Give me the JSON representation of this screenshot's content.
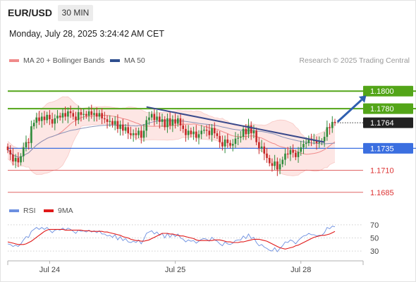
{
  "header": {
    "pair": "EUR/USD",
    "timeframe": "30 MIN",
    "datetime": "Monday, July 28, 2025 3:24:42 AM CET"
  },
  "legend": {
    "main": [
      {
        "label": "MA 20 + Bollinger Bands",
        "color": "#f08a8a"
      },
      {
        "label": "MA 50",
        "color": "#2f4f8f"
      }
    ],
    "rsi": [
      {
        "label": "RSI",
        "color": "#6c8fe0"
      },
      {
        "label": "9MA",
        "color": "#e01919"
      }
    ]
  },
  "credit": "Research © 2025 Trading Central",
  "colors": {
    "up": "#2e8b3a",
    "down": "#c62828",
    "resistance": "#53a518",
    "support": "#3b6fe0",
    "target_red": "#e06666",
    "trendline": "#3a4a8c",
    "arrow": "#2f5fb0"
  },
  "chart_data": {
    "type": "candlestick",
    "symbol": "EUR/USD",
    "timeframe": "30 MIN",
    "ylim": [
      1.1676,
      1.1829
    ],
    "x_ticks": [
      {
        "label": "Jul 24",
        "index": 16
      },
      {
        "label": "Jul 25",
        "index": 64
      },
      {
        "label": "Jul 28",
        "index": 112
      }
    ],
    "levels": [
      {
        "value": 1.18,
        "label": "1.1800",
        "kind": "resistance"
      },
      {
        "value": 1.178,
        "label": "1.1780",
        "kind": "resistance"
      },
      {
        "value": 1.1764,
        "label": "1.1764",
        "kind": "last_price"
      },
      {
        "value": 1.1735,
        "label": "1.1735",
        "kind": "pivot"
      },
      {
        "value": 1.171,
        "label": "1.1710",
        "kind": "support"
      },
      {
        "value": 1.1685,
        "label": "1.1685",
        "kind": "support"
      }
    ],
    "trendline": [
      {
        "index": 53,
        "value": 1.1782
      },
      {
        "index": 121,
        "value": 1.1742
      }
    ],
    "target_arrow": [
      {
        "index": 126,
        "value": 1.1765
      },
      {
        "index": 137,
        "value": 1.1795
      }
    ],
    "close": [
      1.1733,
      1.1728,
      1.172,
      1.1724,
      1.1719,
      1.1726,
      1.1736,
      1.1742,
      1.1741,
      1.176,
      1.1764,
      1.177,
      1.1766,
      1.1771,
      1.1767,
      1.1773,
      1.1768,
      1.1763,
      1.1769,
      1.1772,
      1.177,
      1.1775,
      1.1771,
      1.1777,
      1.1775,
      1.1771,
      1.1767,
      1.1776,
      1.1773,
      1.1774,
      1.1772,
      1.1777,
      1.1773,
      1.1775,
      1.1771,
      1.1775,
      1.1769,
      1.1768,
      1.1765,
      1.1766,
      1.1762,
      1.1766,
      1.1757,
      1.1762,
      1.1755,
      1.1759,
      1.1752,
      1.175,
      1.1752,
      1.175,
      1.1755,
      1.1747,
      1.1755,
      1.1767,
      1.177,
      1.1774,
      1.1767,
      1.1771,
      1.1765,
      1.1768,
      1.1759,
      1.1769,
      1.1761,
      1.1768,
      1.1763,
      1.1769,
      1.1761,
      1.1757,
      1.175,
      1.1755,
      1.1751,
      1.1754,
      1.1747,
      1.1751,
      1.1755,
      1.1756,
      1.1755,
      1.175,
      1.1758,
      1.1752,
      1.1749,
      1.1742,
      1.1737,
      1.1745,
      1.1741,
      1.1738,
      1.174,
      1.1746,
      1.1747,
      1.1748,
      1.1757,
      1.1751,
      1.1761,
      1.1752,
      1.1755,
      1.1742,
      1.1735,
      1.1737,
      1.1729,
      1.1724,
      1.1718,
      1.1715,
      1.172,
      1.1711,
      1.1717,
      1.1722,
      1.1729,
      1.1728,
      1.1733,
      1.173,
      1.1725,
      1.1731,
      1.1736,
      1.174,
      1.1741,
      1.1746,
      1.1744,
      1.1744,
      1.1741,
      1.1742,
      1.1743,
      1.1748,
      1.1759,
      1.1758,
      1.1765,
      1.1764
    ],
    "rsi": [
      41,
      40,
      37,
      39,
      37,
      41,
      47,
      52,
      51,
      60,
      63,
      66,
      63,
      66,
      63,
      66,
      62,
      58,
      62,
      63,
      62,
      65,
      62,
      65,
      63,
      60,
      57,
      62,
      60,
      61,
      59,
      62,
      59,
      61,
      58,
      61,
      56,
      56,
      53,
      54,
      51,
      55,
      47,
      52,
      46,
      49,
      44,
      43,
      45,
      43,
      47,
      41,
      48,
      57,
      59,
      61,
      56,
      59,
      54,
      57,
      50,
      57,
      51,
      56,
      52,
      56,
      50,
      48,
      44,
      47,
      45,
      46,
      42,
      45,
      48,
      49,
      48,
      45,
      51,
      47,
      45,
      41,
      38,
      44,
      41,
      40,
      42,
      46,
      47,
      47,
      53,
      49,
      56,
      49,
      51,
      43,
      38,
      40,
      36,
      34,
      31,
      30,
      35,
      29,
      34,
      38,
      44,
      43,
      47,
      45,
      41,
      46,
      50,
      53,
      54,
      57,
      55,
      55,
      53,
      54,
      54,
      58,
      66,
      64,
      68,
      67
    ],
    "rsi_ma": [
      44,
      43,
      42,
      41,
      40,
      40,
      40,
      41,
      43,
      45,
      48,
      51,
      54,
      57,
      60,
      62,
      63,
      63,
      63,
      63,
      63,
      63,
      62,
      62,
      62,
      62,
      62,
      62,
      62,
      61,
      61,
      61,
      60,
      60,
      60,
      60,
      60,
      59,
      59,
      58,
      57,
      56,
      55,
      54,
      52,
      51,
      50,
      48,
      47,
      46,
      46,
      45,
      45,
      46,
      47,
      49,
      51,
      53,
      55,
      57,
      57,
      57,
      56,
      56,
      55,
      54,
      53,
      53,
      52,
      51,
      50,
      49,
      47,
      46,
      46,
      46,
      46,
      46,
      46,
      47,
      47,
      47,
      46,
      45,
      44,
      44,
      43,
      43,
      43,
      44,
      44,
      45,
      46,
      47,
      48,
      48,
      48,
      47,
      46,
      45,
      43,
      41,
      39,
      37,
      35,
      34,
      33,
      34,
      35,
      36,
      38,
      39,
      41,
      43,
      45,
      47,
      49,
      51,
      52,
      53,
      54,
      54,
      55,
      56,
      58,
      60
    ],
    "rsi_ticks": [
      70,
      50,
      30
    ],
    "rsi_ylim": [
      15,
      85
    ]
  }
}
